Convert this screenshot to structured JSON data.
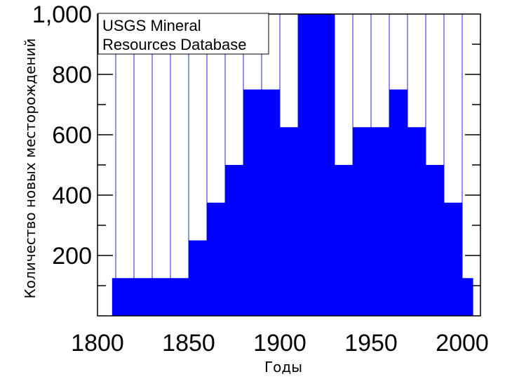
{
  "chart_data": {
    "type": "bar",
    "title": "",
    "annotation_lines": [
      "USGS Mineral",
      "Resources Database"
    ],
    "xlabel": "Годы",
    "ylabel": "Количество новых месторождений",
    "xlim": [
      1800,
      2005
    ],
    "ylim": [
      0,
      1000
    ],
    "x_ticks": [
      1800,
      1850,
      1900,
      1950,
      2000
    ],
    "x_tick_labels": [
      "1800",
      "1850",
      "1900",
      "1950",
      "2000"
    ],
    "y_ticks": [
      200,
      400,
      600,
      800,
      1000
    ],
    "y_tick_labels": [
      "200",
      "400",
      "600",
      "800",
      "1,000"
    ],
    "grid": true,
    "bar_color": "#0000ff",
    "gridline_color": "#2222cc",
    "bins": [
      {
        "start": 1808,
        "end": 1850,
        "value": 125
      },
      {
        "start": 1850,
        "end": 1860,
        "value": 250
      },
      {
        "start": 1860,
        "end": 1870,
        "value": 375
      },
      {
        "start": 1870,
        "end": 1880,
        "value": 500
      },
      {
        "start": 1880,
        "end": 1900,
        "value": 750
      },
      {
        "start": 1900,
        "end": 1910,
        "value": 625
      },
      {
        "start": 1910,
        "end": 1930,
        "value": 1000
      },
      {
        "start": 1930,
        "end": 1940,
        "value": 500
      },
      {
        "start": 1940,
        "end": 1960,
        "value": 625
      },
      {
        "start": 1960,
        "end": 1970,
        "value": 750
      },
      {
        "start": 1970,
        "end": 1980,
        "value": 625
      },
      {
        "start": 1980,
        "end": 1990,
        "value": 500
      },
      {
        "start": 1990,
        "end": 2000,
        "value": 375
      },
      {
        "start": 2000,
        "end": 2006,
        "value": 125
      }
    ]
  }
}
